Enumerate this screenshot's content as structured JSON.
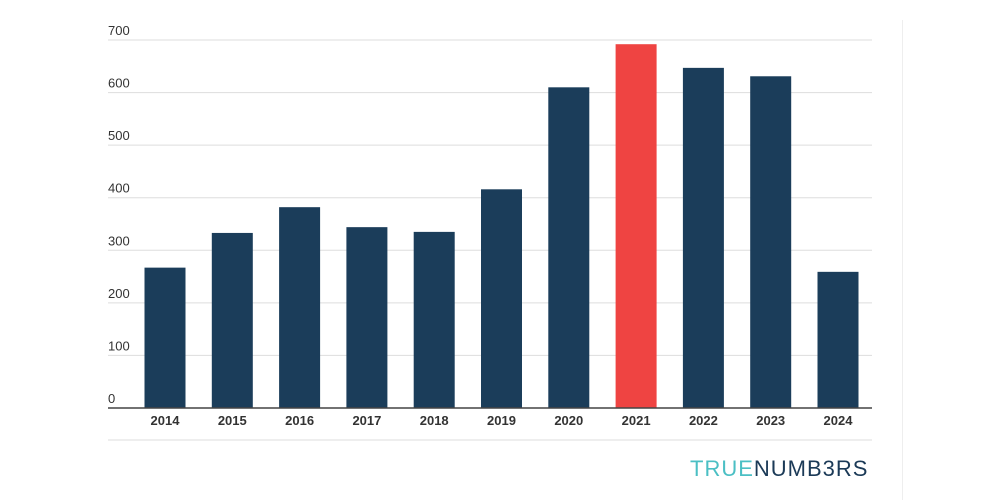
{
  "chart_data": {
    "type": "bar",
    "categories": [
      "2014",
      "2015",
      "2016",
      "2017",
      "2018",
      "2019",
      "2020",
      "2021",
      "2022",
      "2023",
      "2024"
    ],
    "values": [
      267,
      333,
      382,
      344,
      335,
      416,
      610,
      692,
      647,
      631,
      259
    ],
    "ylim": [
      0,
      700
    ],
    "yticks": [
      0,
      100,
      200,
      300,
      400,
      500,
      600,
      700
    ],
    "grid": true,
    "highlight_category": "2021",
    "colors": {
      "bar": "#1b3d5a",
      "highlight": "#ef4442",
      "grid": "#dddddd",
      "axis": "#444444",
      "text": "#333333"
    }
  },
  "branding": {
    "part_a": "TRUE",
    "part_b": "NUMB3RS"
  }
}
